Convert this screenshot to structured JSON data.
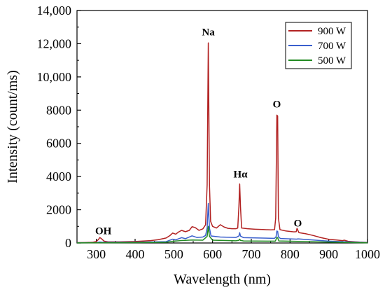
{
  "chart_data": {
    "type": "line",
    "title": "",
    "xlabel": "Wavelength (nm)",
    "ylabel": "Intensity (count/ms)",
    "xlim": [
      250,
      1000
    ],
    "ylim": [
      0,
      14000
    ],
    "xticks": [
      300,
      400,
      500,
      600,
      700,
      800,
      900,
      1000
    ],
    "xtick_labels": [
      "300",
      "400",
      "500",
      "600",
      "700",
      "800",
      "900",
      "1000"
    ],
    "yticks": [
      0,
      2000,
      4000,
      6000,
      8000,
      10000,
      12000,
      14000
    ],
    "ytick_labels": [
      "0",
      "2000",
      "4000",
      "6000",
      "8000",
      "10,000",
      "12,000",
      "14,000"
    ],
    "grid": false,
    "legend_position": "top-right",
    "series": [
      {
        "name": "900 W",
        "color": "#b22222",
        "points": [
          [
            250,
            20
          ],
          [
            270,
            25
          ],
          [
            290,
            40
          ],
          [
            300,
            90
          ],
          [
            305,
            200
          ],
          [
            309,
            330
          ],
          [
            313,
            260
          ],
          [
            320,
            110
          ],
          [
            330,
            70
          ],
          [
            360,
            70
          ],
          [
            400,
            90
          ],
          [
            440,
            140
          ],
          [
            460,
            200
          ],
          [
            480,
            300
          ],
          [
            490,
            450
          ],
          [
            497,
            600
          ],
          [
            505,
            530
          ],
          [
            512,
            660
          ],
          [
            520,
            760
          ],
          [
            530,
            680
          ],
          [
            540,
            760
          ],
          [
            547,
            980
          ],
          [
            555,
            930
          ],
          [
            565,
            760
          ],
          [
            575,
            850
          ],
          [
            582,
            1100
          ],
          [
            586,
            3500
          ],
          [
            589,
            12050
          ],
          [
            592,
            3500
          ],
          [
            595,
            1300
          ],
          [
            600,
            1000
          ],
          [
            610,
            900
          ],
          [
            620,
            1100
          ],
          [
            630,
            960
          ],
          [
            640,
            880
          ],
          [
            650,
            860
          ],
          [
            660,
            860
          ],
          [
            665,
            900
          ],
          [
            668,
            2200
          ],
          [
            670,
            3550
          ],
          [
            672,
            2200
          ],
          [
            675,
            900
          ],
          [
            690,
            860
          ],
          [
            710,
            830
          ],
          [
            730,
            810
          ],
          [
            750,
            790
          ],
          [
            760,
            800
          ],
          [
            763,
            1500
          ],
          [
            766,
            7700
          ],
          [
            768,
            7650
          ],
          [
            770,
            1500
          ],
          [
            774,
            800
          ],
          [
            790,
            720
          ],
          [
            810,
            670
          ],
          [
            816,
            680
          ],
          [
            818,
            880
          ],
          [
            820,
            780
          ],
          [
            823,
            620
          ],
          [
            840,
            560
          ],
          [
            860,
            450
          ],
          [
            880,
            320
          ],
          [
            900,
            220
          ],
          [
            920,
            180
          ],
          [
            935,
            140
          ],
          [
            940,
            170
          ],
          [
            950,
            100
          ],
          [
            980,
            50
          ],
          [
            1000,
            30
          ]
        ]
      },
      {
        "name": "700 W",
        "color": "#3a5fcd",
        "points": [
          [
            250,
            10
          ],
          [
            300,
            20
          ],
          [
            309,
            60
          ],
          [
            315,
            40
          ],
          [
            400,
            40
          ],
          [
            480,
            80
          ],
          [
            497,
            230
          ],
          [
            505,
            190
          ],
          [
            520,
            320
          ],
          [
            530,
            260
          ],
          [
            547,
            430
          ],
          [
            560,
            330
          ],
          [
            575,
            360
          ],
          [
            582,
            450
          ],
          [
            586,
            900
          ],
          [
            589,
            2380
          ],
          [
            592,
            900
          ],
          [
            596,
            420
          ],
          [
            620,
            360
          ],
          [
            660,
            330
          ],
          [
            668,
            420
          ],
          [
            670,
            620
          ],
          [
            672,
            420
          ],
          [
            680,
            320
          ],
          [
            760,
            280
          ],
          [
            764,
            380
          ],
          [
            766,
            720
          ],
          [
            768,
            700
          ],
          [
            770,
            380
          ],
          [
            775,
            270
          ],
          [
            818,
            230
          ],
          [
            820,
            250
          ],
          [
            900,
            110
          ],
          [
            1000,
            20
          ]
        ]
      },
      {
        "name": "500 W",
        "color": "#228b22",
        "points": [
          [
            250,
            5
          ],
          [
            300,
            10
          ],
          [
            400,
            20
          ],
          [
            480,
            40
          ],
          [
            497,
            100
          ],
          [
            520,
            150
          ],
          [
            547,
            180
          ],
          [
            575,
            170
          ],
          [
            586,
            400
          ],
          [
            589,
            1000
          ],
          [
            592,
            400
          ],
          [
            600,
            170
          ],
          [
            660,
            130
          ],
          [
            668,
            160
          ],
          [
            670,
            230
          ],
          [
            672,
            160
          ],
          [
            680,
            120
          ],
          [
            762,
            110
          ],
          [
            766,
            330
          ],
          [
            768,
            320
          ],
          [
            771,
            120
          ],
          [
            900,
            50
          ],
          [
            1000,
            10
          ]
        ]
      }
    ],
    "annotations": [
      {
        "text": "OH",
        "x": 318,
        "y": 520
      },
      {
        "text": "Na",
        "x": 589,
        "y": 12500
      },
      {
        "text": "Hα",
        "x": 672,
        "y": 3950
      },
      {
        "text": "O",
        "x": 766,
        "y": 8150
      },
      {
        "text": "O",
        "x": 820,
        "y": 1000
      }
    ]
  }
}
